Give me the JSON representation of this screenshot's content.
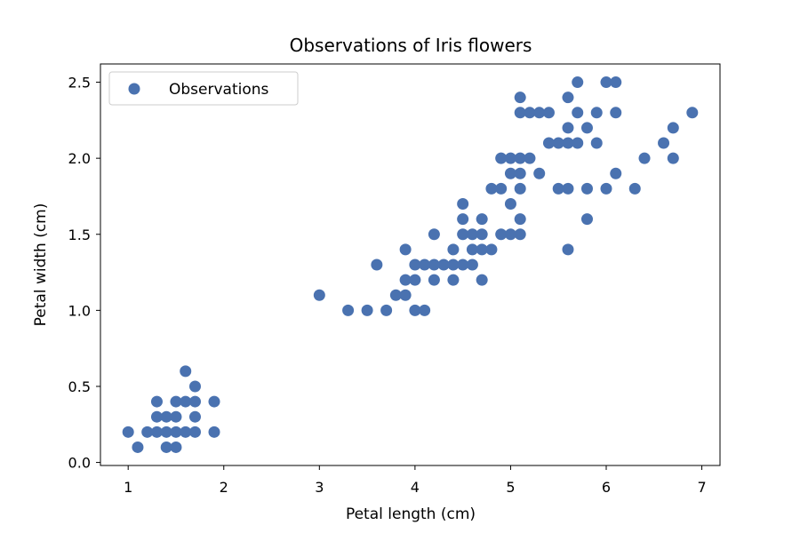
{
  "chart_data": {
    "type": "scatter",
    "title": "Observations of Iris flowers",
    "xlabel": "Petal length (cm)",
    "ylabel": "Petal width (cm)",
    "xlim": [
      0.71,
      7.19
    ],
    "ylim": [
      -0.02,
      2.62
    ],
    "xticks": [
      1,
      2,
      3,
      4,
      5,
      6,
      7
    ],
    "yticks": [
      0.0,
      0.5,
      1.0,
      1.5,
      2.0,
      2.5
    ],
    "ytick_labels": [
      "0.0",
      "0.5",
      "1.0",
      "1.5",
      "2.0",
      "2.5"
    ],
    "grid": false,
    "legend": {
      "position": "top-left",
      "entries": [
        "Observations"
      ]
    },
    "marker_color": "#4a72b0",
    "series": [
      {
        "name": "Observations",
        "points": [
          [
            1.0,
            0.2
          ],
          [
            1.1,
            0.1
          ],
          [
            1.2,
            0.2
          ],
          [
            1.3,
            0.2
          ],
          [
            1.3,
            0.3
          ],
          [
            1.3,
            0.4
          ],
          [
            1.4,
            0.1
          ],
          [
            1.4,
            0.2
          ],
          [
            1.4,
            0.3
          ],
          [
            1.5,
            0.1
          ],
          [
            1.5,
            0.2
          ],
          [
            1.5,
            0.3
          ],
          [
            1.5,
            0.4
          ],
          [
            1.6,
            0.2
          ],
          [
            1.6,
            0.4
          ],
          [
            1.6,
            0.6
          ],
          [
            1.7,
            0.2
          ],
          [
            1.7,
            0.3
          ],
          [
            1.7,
            0.4
          ],
          [
            1.7,
            0.5
          ],
          [
            1.9,
            0.2
          ],
          [
            1.9,
            0.4
          ],
          [
            3.0,
            1.1
          ],
          [
            3.3,
            1.0
          ],
          [
            3.5,
            1.0
          ],
          [
            3.6,
            1.3
          ],
          [
            3.7,
            1.0
          ],
          [
            3.8,
            1.1
          ],
          [
            3.9,
            1.1
          ],
          [
            3.9,
            1.2
          ],
          [
            3.9,
            1.4
          ],
          [
            4.0,
            1.0
          ],
          [
            4.0,
            1.2
          ],
          [
            4.0,
            1.3
          ],
          [
            4.1,
            1.0
          ],
          [
            4.1,
            1.3
          ],
          [
            4.2,
            1.2
          ],
          [
            4.2,
            1.3
          ],
          [
            4.2,
            1.5
          ],
          [
            4.3,
            1.3
          ],
          [
            4.4,
            1.2
          ],
          [
            4.4,
            1.3
          ],
          [
            4.4,
            1.4
          ],
          [
            4.5,
            1.3
          ],
          [
            4.5,
            1.5
          ],
          [
            4.5,
            1.6
          ],
          [
            4.5,
            1.7
          ],
          [
            4.6,
            1.3
          ],
          [
            4.6,
            1.4
          ],
          [
            4.6,
            1.5
          ],
          [
            4.7,
            1.2
          ],
          [
            4.7,
            1.4
          ],
          [
            4.7,
            1.5
          ],
          [
            4.7,
            1.6
          ],
          [
            4.8,
            1.4
          ],
          [
            4.8,
            1.8
          ],
          [
            4.9,
            1.5
          ],
          [
            4.9,
            1.8
          ],
          [
            4.9,
            2.0
          ],
          [
            5.0,
            1.5
          ],
          [
            5.0,
            1.7
          ],
          [
            5.0,
            1.9
          ],
          [
            5.0,
            2.0
          ],
          [
            5.1,
            1.5
          ],
          [
            5.1,
            1.6
          ],
          [
            5.1,
            1.8
          ],
          [
            5.1,
            1.9
          ],
          [
            5.1,
            2.0
          ],
          [
            5.1,
            2.3
          ],
          [
            5.1,
            2.4
          ],
          [
            5.2,
            2.0
          ],
          [
            5.2,
            2.3
          ],
          [
            5.3,
            1.9
          ],
          [
            5.3,
            2.3
          ],
          [
            5.4,
            2.1
          ],
          [
            5.4,
            2.3
          ],
          [
            5.5,
            1.8
          ],
          [
            5.5,
            2.1
          ],
          [
            5.6,
            1.4
          ],
          [
            5.6,
            1.8
          ],
          [
            5.6,
            2.1
          ],
          [
            5.6,
            2.2
          ],
          [
            5.6,
            2.4
          ],
          [
            5.7,
            2.1
          ],
          [
            5.7,
            2.3
          ],
          [
            5.7,
            2.5
          ],
          [
            5.8,
            1.6
          ],
          [
            5.8,
            1.8
          ],
          [
            5.8,
            2.2
          ],
          [
            5.9,
            2.1
          ],
          [
            5.9,
            2.3
          ],
          [
            6.0,
            1.8
          ],
          [
            6.0,
            2.5
          ],
          [
            6.1,
            1.9
          ],
          [
            6.1,
            2.3
          ],
          [
            6.1,
            2.5
          ],
          [
            6.3,
            1.8
          ],
          [
            6.4,
            2.0
          ],
          [
            6.6,
            2.1
          ],
          [
            6.7,
            2.0
          ],
          [
            6.7,
            2.2
          ],
          [
            6.9,
            2.3
          ]
        ]
      }
    ]
  }
}
